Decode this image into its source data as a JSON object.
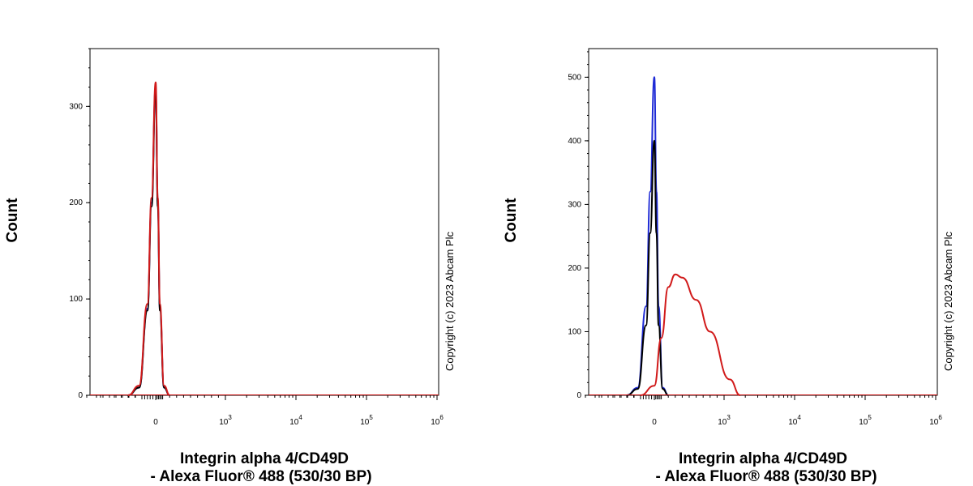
{
  "chart_data": [
    {
      "type": "line",
      "subtype": "flow-cytometry-histogram",
      "ylabel": "Count",
      "xlabel_line1": "Integrin alpha 4/CD49D",
      "xlabel_line2": "- Alexa Fluor® 488 (530/30 BP)",
      "copyright": "Copyright (c) 2023 Abcam Plc",
      "xscale": "biexponential",
      "ylim": [
        0,
        360
      ],
      "yticks": [
        0,
        100,
        200,
        300
      ],
      "xticks": [
        {
          "label": "0",
          "exp": ""
        },
        {
          "label": "10",
          "exp": "3"
        },
        {
          "label": "10",
          "exp": "4"
        },
        {
          "label": "10",
          "exp": "5"
        },
        {
          "label": "10",
          "exp": "6"
        }
      ],
      "series": [
        {
          "name": "blue",
          "color": "#1f2bd6",
          "peak_x": 0,
          "peak_count": 320,
          "x": [
            -200,
            -120,
            -60,
            -30,
            0,
            30,
            60,
            120,
            200
          ],
          "y": [
            0,
            8,
            90,
            200,
            320,
            200,
            90,
            8,
            0
          ]
        },
        {
          "name": "black",
          "color": "#000000",
          "peak_x": 0,
          "peak_count": 315,
          "x": [
            -200,
            -120,
            -60,
            -30,
            0,
            30,
            60,
            120,
            200
          ],
          "y": [
            0,
            8,
            88,
            196,
            315,
            196,
            88,
            8,
            0
          ]
        },
        {
          "name": "red",
          "color": "#d11a1a",
          "peak_x": 0,
          "peak_count": 325,
          "x": [
            -200,
            -120,
            -60,
            -30,
            0,
            30,
            60,
            120,
            200
          ],
          "y": [
            0,
            10,
            95,
            205,
            325,
            205,
            95,
            10,
            0
          ]
        }
      ]
    },
    {
      "type": "line",
      "subtype": "flow-cytometry-histogram",
      "ylabel": "Count",
      "xlabel_line1": "Integrin alpha 4/CD49D",
      "xlabel_line2": "- Alexa Fluor® 488 (530/30 BP)",
      "copyright": "Copyright (c) 2023 Abcam Plc",
      "xscale": "biexponential",
      "ylim": [
        0,
        545
      ],
      "yticks": [
        0,
        100,
        200,
        300,
        400,
        500
      ],
      "xticks": [
        {
          "label": "0",
          "exp": ""
        },
        {
          "label": "10",
          "exp": "3"
        },
        {
          "label": "10",
          "exp": "4"
        },
        {
          "label": "10",
          "exp": "5"
        },
        {
          "label": "10",
          "exp": "6"
        }
      ],
      "series": [
        {
          "name": "blue",
          "color": "#1f2bd6",
          "peak_x": 0,
          "peak_count": 500,
          "x": [
            -200,
            -120,
            -60,
            -30,
            0,
            30,
            60,
            120,
            200
          ],
          "y": [
            0,
            12,
            140,
            320,
            500,
            320,
            140,
            12,
            0
          ]
        },
        {
          "name": "black",
          "color": "#000000",
          "peak_x": 0,
          "peak_count": 400,
          "x": [
            -200,
            -120,
            -60,
            -30,
            0,
            30,
            60,
            120,
            200
          ],
          "y": [
            0,
            10,
            110,
            255,
            400,
            255,
            110,
            10,
            0
          ]
        },
        {
          "name": "red",
          "color": "#d11a1a",
          "peak_x": 300,
          "peak_count": 190,
          "x": [
            -100,
            0,
            100,
            200,
            300,
            400,
            600,
            800,
            1200,
            1700
          ],
          "y": [
            0,
            15,
            90,
            170,
            190,
            185,
            150,
            100,
            25,
            0
          ]
        }
      ]
    }
  ]
}
